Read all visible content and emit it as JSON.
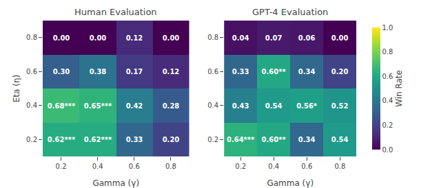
{
  "chart_data": [
    {
      "type": "heatmap",
      "title": "Human Evaluation",
      "x": [
        "0.2",
        "0.4",
        "0.6",
        "0.8"
      ],
      "y": [
        "0.8",
        "0.6",
        "0.4",
        "0.2"
      ],
      "xlabel": "Gamma (γ)",
      "ylabel": "Eta (η)",
      "values": [
        [
          0.0,
          0.0,
          0.12,
          0.0
        ],
        [
          0.3,
          0.38,
          0.17,
          0.12
        ],
        [
          0.68,
          0.65,
          0.42,
          0.28
        ],
        [
          0.62,
          0.62,
          0.33,
          0.2
        ]
      ],
      "value_labels": [
        [
          "0.00",
          "0.00",
          "0.12",
          "0.00"
        ],
        [
          "0.30",
          "0.38",
          "0.17",
          "0.12"
        ],
        [
          "0.68***",
          "0.65***",
          "0.42",
          "0.28"
        ],
        [
          "0.62***",
          "0.62***",
          "0.33",
          "0.20"
        ]
      ],
      "data_labels": true,
      "color": "Viridis",
      "zlim": [
        0.0,
        1.0
      ],
      "grid": false
    },
    {
      "type": "heatmap",
      "title": "GPT-4 Evaluation",
      "x": [
        "0.2",
        "0.4",
        "0.6",
        "0.8"
      ],
      "y": [
        "0.8",
        "0.6",
        "0.4",
        "0.2"
      ],
      "xlabel": "Gamma (γ)",
      "values": [
        [
          0.04,
          0.07,
          0.06,
          0.0
        ],
        [
          0.33,
          0.6,
          0.34,
          0.2
        ],
        [
          0.43,
          0.54,
          0.56,
          0.52
        ],
        [
          0.64,
          0.6,
          0.34,
          0.54
        ]
      ],
      "value_labels": [
        [
          "0.04",
          "0.07",
          "0.06",
          "0.00"
        ],
        [
          "0.33",
          "0.60**",
          "0.34",
          "0.20"
        ],
        [
          "0.43",
          "0.54",
          "0.56*",
          "0.52"
        ],
        [
          "0.64***",
          "0.60**",
          "0.34",
          "0.54"
        ]
      ],
      "data_labels": true,
      "color": "Viridis",
      "zlim": [
        0.0,
        1.0
      ],
      "grid": false,
      "colorbar_label": "Win Rate",
      "zticks": [
        {
          "value": 0.0,
          "label": "0.0"
        },
        0.2,
        0.4,
        0.6,
        0.8,
        {
          "value": 1.0,
          "label": "1.0"
        }
      ]
    }
  ]
}
